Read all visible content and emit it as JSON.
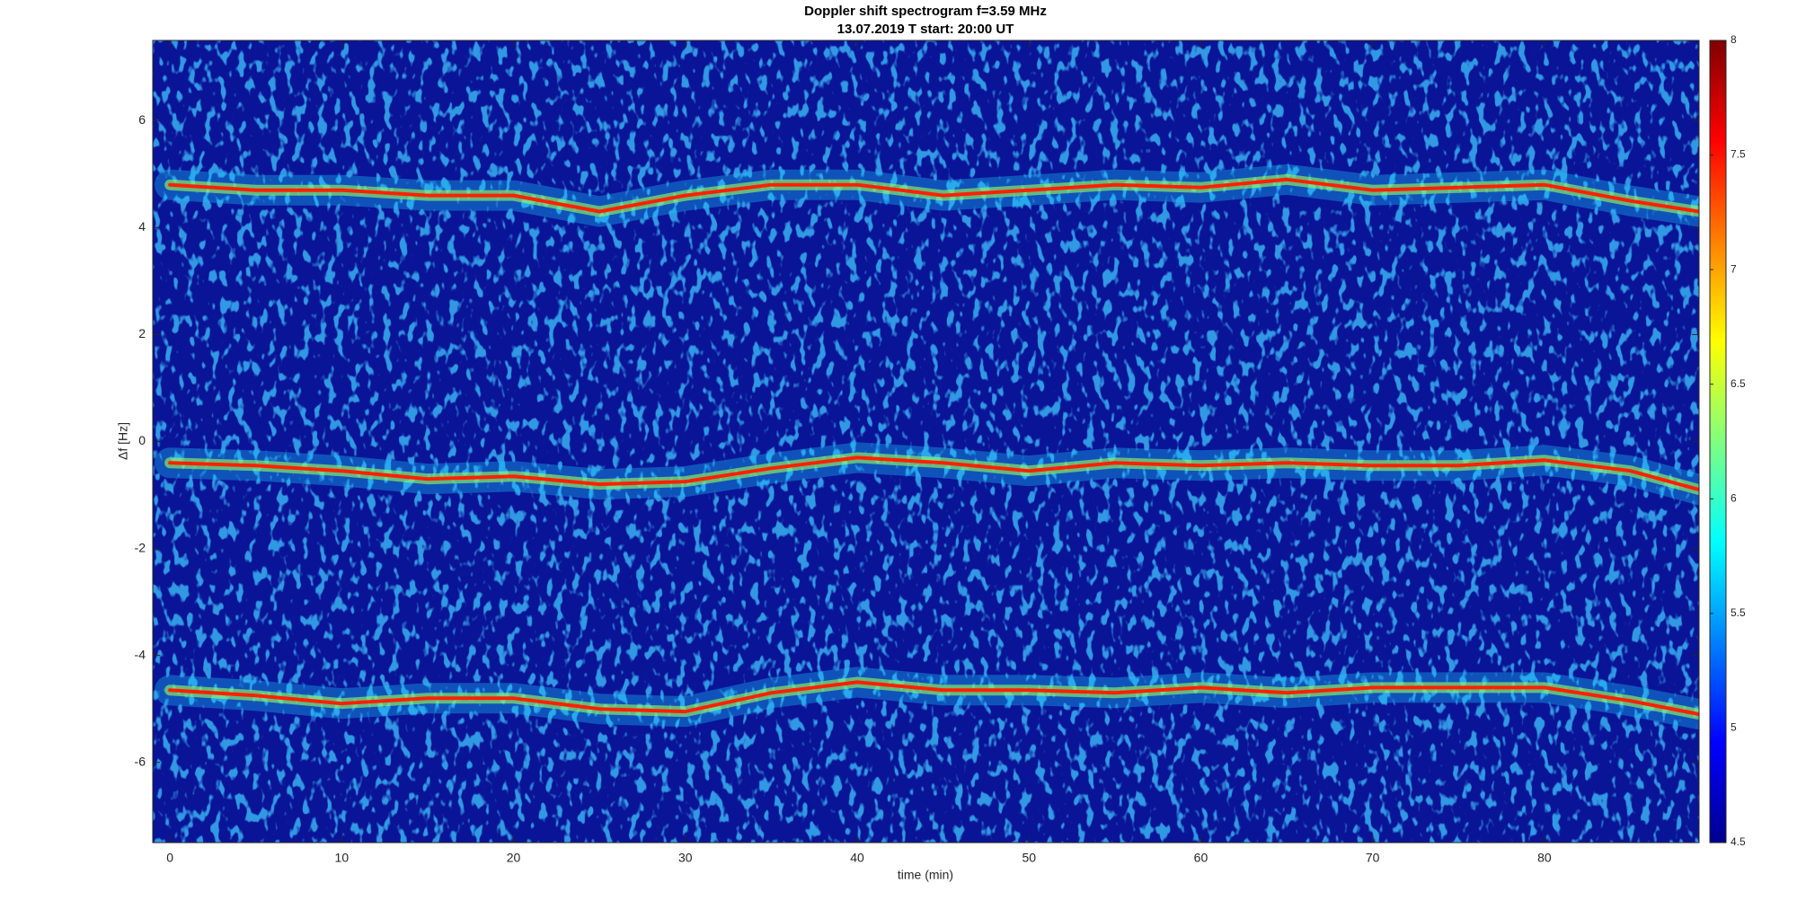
{
  "chart_data": {
    "type": "spectrogram",
    "title": "Doppler shift spectrogram f=3.59 MHz",
    "subtitle": "13.07.2019   T start: 20:00 UT",
    "x_label": "time (min)",
    "y_label": "Δf [Hz]",
    "x": [
      0,
      5,
      10,
      15,
      20,
      25,
      30,
      35,
      40,
      45,
      50,
      55,
      60,
      65,
      70,
      75,
      80,
      85,
      89
    ],
    "series": [
      {
        "color": "#ff2000",
        "values": [
          4.8,
          4.7,
          4.7,
          4.6,
          4.6,
          4.3,
          4.6,
          4.8,
          4.8,
          4.6,
          4.7,
          4.8,
          4.75,
          4.9,
          4.7,
          4.75,
          4.8,
          4.5,
          4.3
        ]
      },
      {
        "color": "#ff2000",
        "values": [
          -0.4,
          -0.45,
          -0.55,
          -0.7,
          -0.65,
          -0.8,
          -0.75,
          -0.5,
          -0.3,
          -0.4,
          -0.55,
          -0.4,
          -0.45,
          -0.4,
          -0.45,
          -0.45,
          -0.35,
          -0.55,
          -0.9
        ]
      },
      {
        "color": "#ff2000",
        "values": [
          -4.65,
          -4.75,
          -4.9,
          -4.8,
          -4.8,
          -5.0,
          -5.05,
          -4.7,
          -4.5,
          -4.65,
          -4.65,
          -4.7,
          -4.6,
          -4.7,
          -4.6,
          -4.6,
          -4.6,
          -4.85,
          -5.1
        ]
      }
    ],
    "xlim": [
      -1,
      89
    ],
    "xticks": [
      0,
      10,
      20,
      30,
      40,
      50,
      60,
      70,
      80
    ],
    "ylim": [
      -7.5,
      7.5
    ],
    "yticks": [
      -6,
      -4,
      -2,
      0,
      2,
      4,
      6
    ],
    "colorbar": {
      "colormap": "jet",
      "lim": [
        4.5,
        8
      ],
      "ticks": [
        4.5,
        5,
        5.5,
        6,
        6.5,
        7,
        7.5,
        8
      ]
    }
  }
}
